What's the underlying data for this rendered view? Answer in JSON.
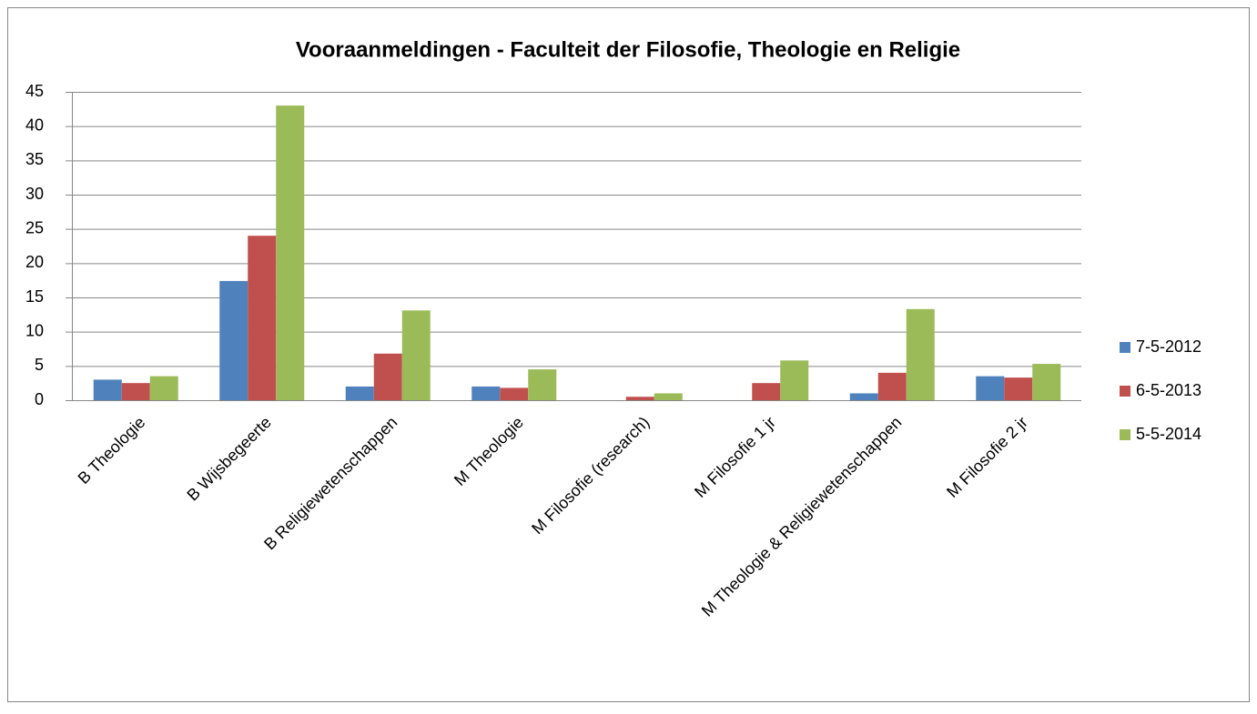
{
  "chart_data": {
    "type": "bar",
    "title": "Vooraanmeldingen - Faculteit der Filosofie, Theologie en Religie",
    "categories": [
      "B Theologie",
      "B Wijsbegeerte",
      "B Religiewetenschappen",
      "M Theologie",
      "M Filosofie (research)",
      "M Filosofie 1 jr",
      "M Theologie & Religiewetenschappen",
      "M Filosofie 2 jr"
    ],
    "series": [
      {
        "name": "7-5-2012",
        "color": "#4f81bd",
        "values": [
          3,
          17.4,
          2,
          2,
          0,
          0,
          1,
          3.5
        ]
      },
      {
        "name": "6-5-2013",
        "color": "#c0504d",
        "values": [
          2.5,
          24,
          6.8,
          1.8,
          0.5,
          2.5,
          4,
          3.3
        ]
      },
      {
        "name": "5-5-2014",
        "color": "#9bbb59",
        "values": [
          3.5,
          43,
          13.1,
          4.5,
          1,
          5.8,
          13.3,
          5.3
        ]
      }
    ],
    "ylim": [
      0,
      45
    ],
    "yticks": [
      0,
      5,
      10,
      15,
      20,
      25,
      30,
      35,
      40,
      45
    ],
    "grid": true,
    "legend": "right"
  }
}
